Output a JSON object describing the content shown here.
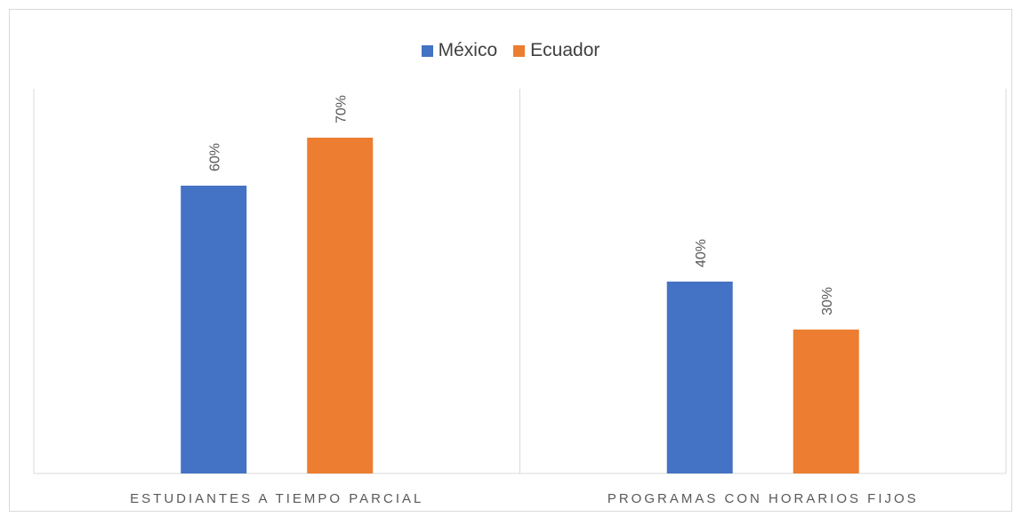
{
  "chart_data": {
    "type": "bar",
    "categories": [
      "ESTUDIANTES A TIEMPO PARCIAL",
      "PROGRAMAS CON HORARIOS FIJOS"
    ],
    "series": [
      {
        "name": "México",
        "values": [
          60,
          40
        ],
        "labels": [
          "60%",
          "40%"
        ],
        "color": "#4472C4"
      },
      {
        "name": "Ecuador",
        "values": [
          70,
          30
        ],
        "labels": [
          "70%",
          "30%"
        ],
        "color": "#ED7D31"
      }
    ],
    "ylim": [
      0,
      100
    ],
    "unit": "%",
    "grid": false,
    "legend_position": "top"
  },
  "colors": {
    "axis": "#d9d9d9",
    "text": "#595959"
  }
}
